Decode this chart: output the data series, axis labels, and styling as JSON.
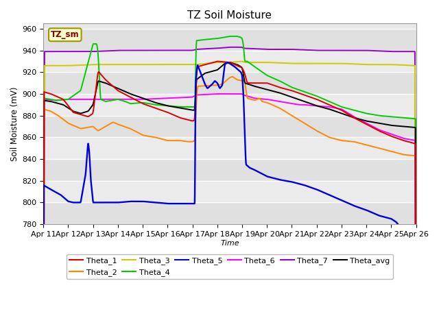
{
  "title": "TZ Soil Moisture",
  "xlabel": "Time",
  "ylabel": "Soil Moisture (mV)",
  "ylim": [
    780,
    965
  ],
  "yticks": [
    780,
    800,
    820,
    840,
    860,
    880,
    900,
    920,
    940,
    960
  ],
  "x_labels": [
    "Apr 11",
    "Apr 12",
    "Apr 13",
    "Apr 14",
    "Apr 15",
    "Apr 16",
    "Apr 17",
    "Apr 18",
    "Apr 19",
    "Apr 20",
    "Apr 21",
    "Apr 22",
    "Apr 23",
    "Apr 24",
    "Apr 25",
    "Apr 26"
  ],
  "colors": {
    "Theta_1": "#dd0000",
    "Theta_2": "#ff8800",
    "Theta_3": "#cccc00",
    "Theta_4": "#00cc00",
    "Theta_5": "#0000dd",
    "Theta_6": "#ff00ff",
    "Theta_7": "#9900cc",
    "Theta_avg": "#000000"
  },
  "legend_box_facecolor": "#ffffcc",
  "legend_box_edgecolor": "#999900",
  "legend_text_color": "#880000",
  "axes_bg": "#e8e8e8",
  "fig_bg": "#ffffff",
  "grid_color": "#ffffff",
  "grid_lw": 1.0
}
